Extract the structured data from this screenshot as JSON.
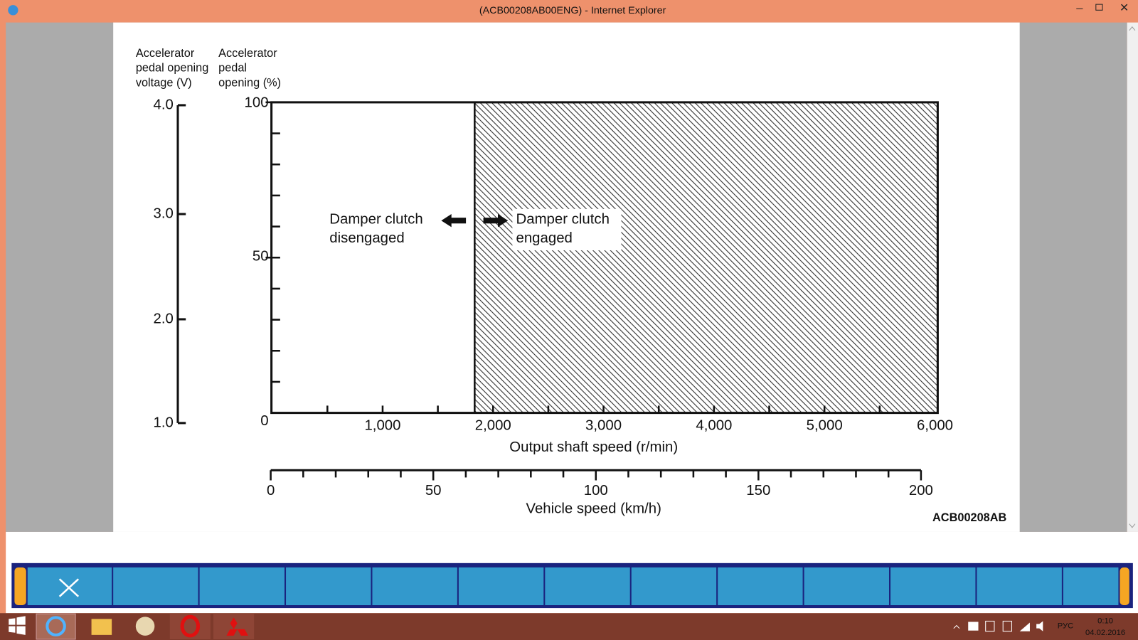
{
  "window": {
    "title": "(ACB00208AB00ENG) - Internet Explorer"
  },
  "diagram": {
    "voltage_axis": {
      "title_lines": [
        "Accelerator",
        "pedal opening",
        "voltage (V)"
      ],
      "ticks": [
        "4.0",
        "3.0",
        "2.0",
        "1.0"
      ]
    },
    "opening_axis": {
      "title_lines": [
        "Accelerator",
        "pedal",
        "opening (%)"
      ],
      "ticks": [
        "100",
        "50",
        "0"
      ]
    },
    "rpm_axis": {
      "title": "Output shaft speed (r/min)",
      "ticks": [
        "1,000",
        "2,000",
        "3,000",
        "4,000",
        "5,000",
        "6,000"
      ]
    },
    "speed_axis": {
      "title": "Vehicle speed (km/h)",
      "ticks": [
        "0",
        "50",
        "100",
        "150",
        "200"
      ]
    },
    "regions": [
      {
        "label_lines": [
          "Damper clutch",
          "disengaged"
        ]
      },
      {
        "label_lines": [
          "Damper clutch",
          "engaged"
        ]
      }
    ],
    "figure_id": "ACB00208AB"
  },
  "taskbar": {
    "language": "РУС",
    "time": "0:10",
    "date": "04.02.2016"
  }
}
